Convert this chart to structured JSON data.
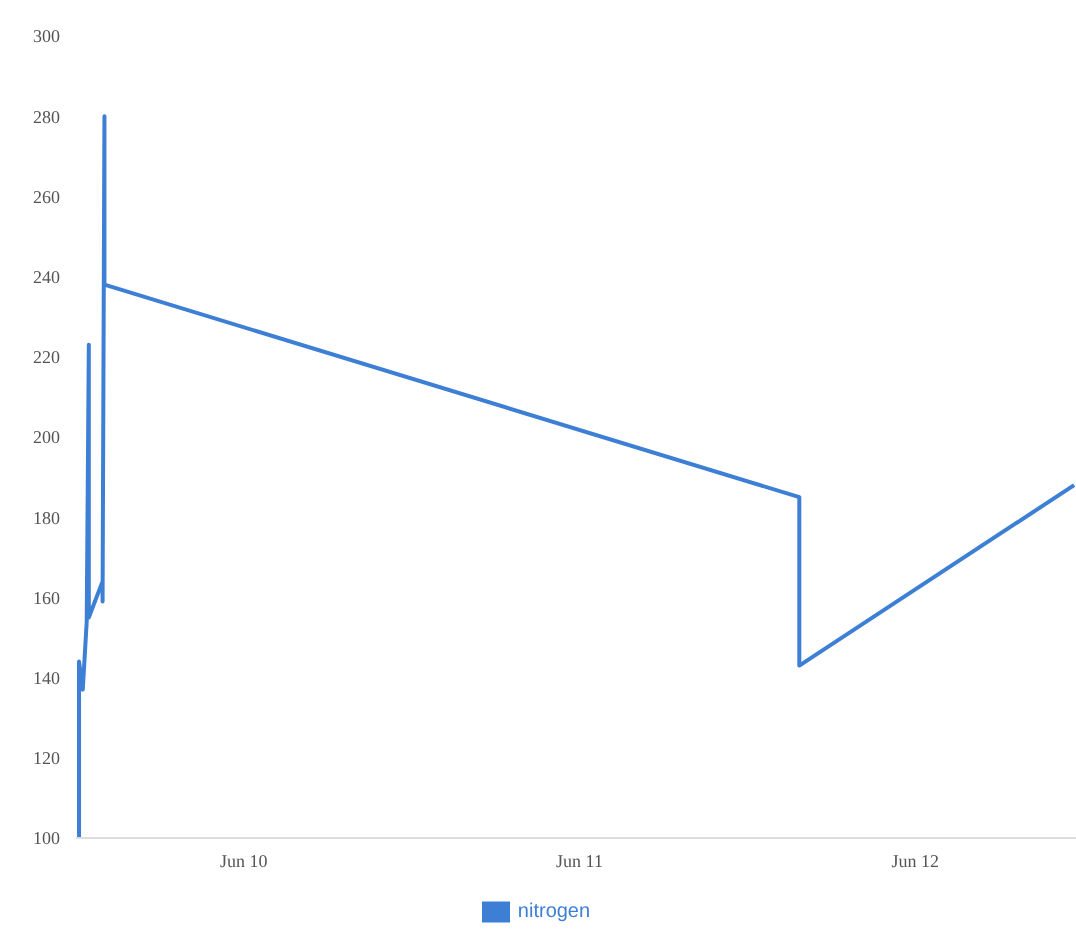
{
  "chart_data": {
    "type": "line",
    "legend": "bottom",
    "grid": false,
    "marker": "none",
    "line_style": "solid",
    "xlim": [
      "--06-09T12:00",
      "--06-12T11:30"
    ],
    "xticks": [
      {
        "value": "--06-10",
        "label": "Jun 10"
      },
      {
        "value": "--06-11",
        "label": "Jun 11"
      },
      {
        "value": "--06-12",
        "label": "Jun 12"
      }
    ],
    "ylim": [
      100,
      300
    ],
    "yticks": [
      100,
      120,
      140,
      160,
      180,
      200,
      220,
      240,
      260,
      280,
      300
    ],
    "series": [
      {
        "name": "nitrogen",
        "color": "#3d7fd4",
        "x": [
          "--06-09T12:13",
          "--06-09T12:13",
          "--06-09T12:29",
          "--06-09T12:46",
          "--06-09T12:55",
          "--06-09T12:55",
          "--06-09T13:54",
          "--06-09T13:54",
          "--06-09T14:02",
          "--06-09T14:02",
          "--06-11T15:43",
          "--06-11T15:43",
          "--06-12T11:22"
        ],
        "values": [
          100,
          144,
          137,
          154,
          223,
          155,
          164,
          159,
          280,
          238,
          185,
          143,
          188
        ]
      }
    ]
  }
}
